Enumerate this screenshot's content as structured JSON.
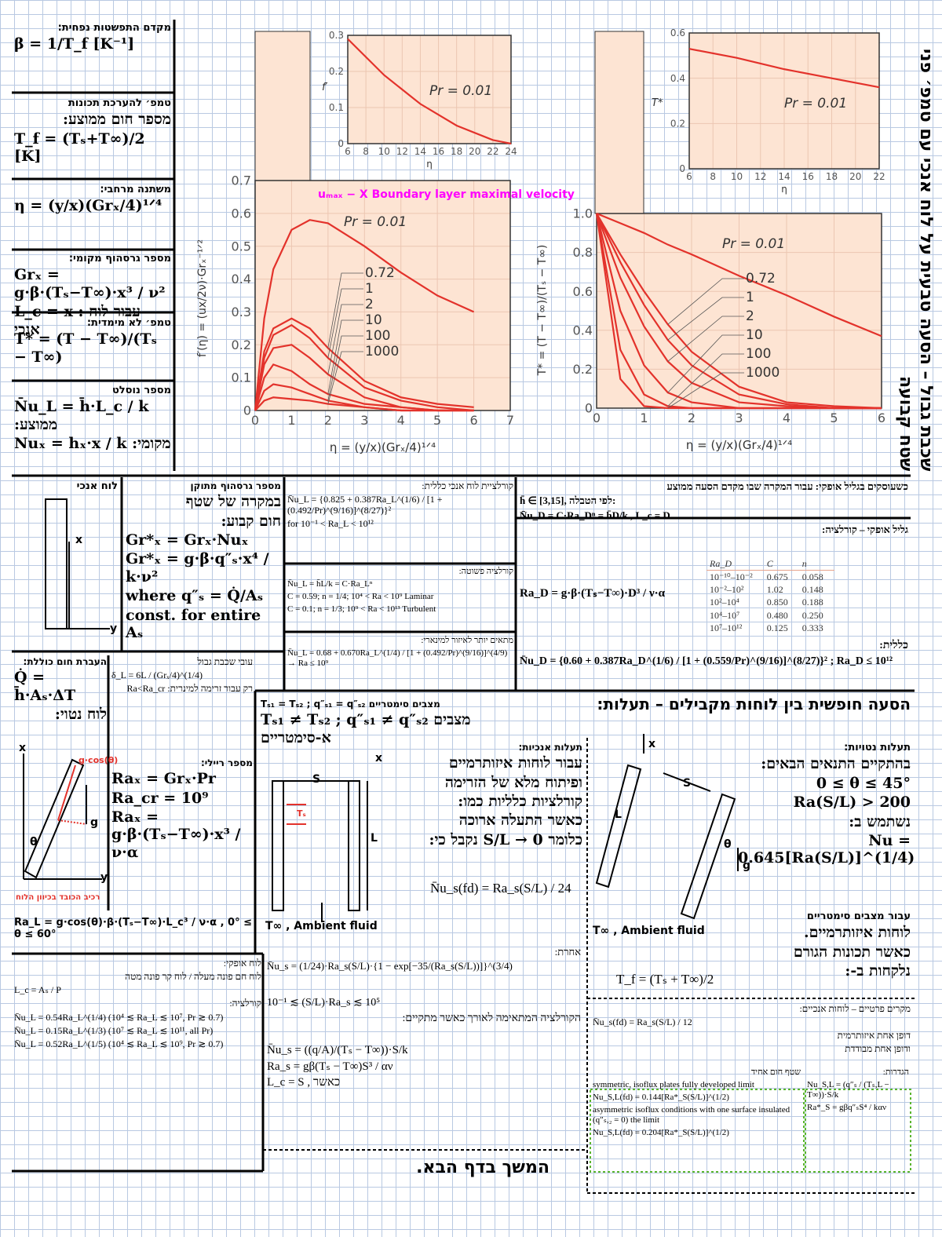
{
  "chart_data": [
    {
      "type": "line",
      "xlabel": "η = (y/x)(Grₓ/4)¹ᐟ⁴",
      "ylabel": "f′(η) = (ux/2ν)·Grₓ⁻¹ᐟ²",
      "xlim": [
        0,
        7
      ],
      "ylim": [
        0,
        0.7
      ],
      "xticks": [
        0,
        1,
        2,
        3,
        4,
        5,
        6,
        7
      ],
      "yticks": [
        0,
        0.1,
        0.2,
        0.3,
        0.4,
        0.5,
        0.6,
        0.7
      ],
      "grid": true,
      "x": [
        0,
        0.25,
        0.5,
        1,
        1.5,
        2,
        3,
        4,
        5,
        6
      ],
      "series": [
        {
          "name": "Pr = 0.01",
          "color": "#e3322b",
          "values": [
            0,
            0.28,
            0.43,
            0.55,
            0.58,
            0.57,
            0.5,
            0.42,
            0.35,
            0.3
          ]
        },
        {
          "name": "0.72",
          "color": "#e3322b",
          "values": [
            0,
            0.18,
            0.25,
            0.28,
            0.25,
            0.19,
            0.09,
            0.04,
            0.02,
            0.01
          ]
        },
        {
          "name": "1",
          "color": "#e3322b",
          "values": [
            0,
            0.16,
            0.23,
            0.26,
            0.22,
            0.16,
            0.07,
            0.03,
            0.01,
            0
          ]
        },
        {
          "name": "2",
          "color": "#e3322b",
          "values": [
            0,
            0.14,
            0.19,
            0.2,
            0.16,
            0.11,
            0.04,
            0.01,
            0,
            0
          ]
        },
        {
          "name": "10",
          "color": "#e3322b",
          "values": [
            0,
            0.1,
            0.14,
            0.12,
            0.08,
            0.05,
            0.02,
            0.01,
            0,
            0
          ]
        },
        {
          "name": "100",
          "color": "#e3322b",
          "values": [
            0,
            0.06,
            0.08,
            0.07,
            0.05,
            0.03,
            0.01,
            0,
            0,
            0
          ]
        },
        {
          "name": "1000",
          "color": "#e3322b",
          "values": [
            0,
            0.03,
            0.04,
            0.035,
            0.03,
            0.02,
            0.01,
            0,
            0,
            0
          ]
        }
      ],
      "annotation": "uₘₐₓ − X  Boundary layer maximal velocity",
      "inset": {
        "type": "line",
        "xlabel": "η",
        "ylabel": "f′",
        "xlim": [
          6,
          24
        ],
        "ylim": [
          0,
          0.3
        ],
        "xticks": [
          6,
          8,
          10,
          12,
          14,
          16,
          18,
          20,
          22,
          24
        ],
        "yticks": [
          0,
          0.1,
          0.2,
          0.3
        ],
        "grid": true,
        "x": [
          6,
          10,
          14,
          18,
          22,
          24
        ],
        "series": [
          {
            "name": "Pr = 0.01",
            "color": "#e3322b",
            "values": [
              0.29,
              0.19,
              0.11,
              0.05,
              0.01,
              0
            ]
          }
        ]
      }
    },
    {
      "type": "line",
      "xlabel": "η = (y/x)(Grₓ/4)¹ᐟ⁴",
      "ylabel": "T* = (T − T∞)/(Tₛ − T∞)",
      "xlim": [
        0,
        6
      ],
      "ylim": [
        0,
        1
      ],
      "xticks": [
        0,
        1,
        2,
        3,
        4,
        5,
        6
      ],
      "yticks": [
        0,
        0.2,
        0.4,
        0.6,
        0.8,
        {
          "value": 1,
          "label": "1.0"
        }
      ],
      "grid": true,
      "x": [
        0,
        0.5,
        1,
        1.5,
        2,
        3,
        4,
        5,
        6
      ],
      "series": [
        {
          "name": "Pr = 0.01",
          "color": "#e3322b",
          "values": [
            1,
            0.95,
            0.9,
            0.84,
            0.79,
            0.68,
            0.58,
            0.47,
            0.37
          ]
        },
        {
          "name": "0.72",
          "color": "#e3322b",
          "values": [
            1,
            0.79,
            0.6,
            0.43,
            0.29,
            0.11,
            0.03,
            0.01,
            0
          ]
        },
        {
          "name": "1",
          "color": "#e3322b",
          "values": [
            1,
            0.75,
            0.53,
            0.35,
            0.22,
            0.07,
            0.02,
            0,
            0
          ]
        },
        {
          "name": "2",
          "color": "#e3322b",
          "values": [
            1,
            0.67,
            0.42,
            0.24,
            0.13,
            0.03,
            0.01,
            0,
            0
          ]
        },
        {
          "name": "10",
          "color": "#e3322b",
          "values": [
            1,
            0.5,
            0.22,
            0.08,
            0.03,
            0,
            0,
            0,
            0
          ]
        },
        {
          "name": "100",
          "color": "#e3322b",
          "values": [
            1,
            0.3,
            0.07,
            0.01,
            0,
            0,
            0,
            0,
            0
          ]
        },
        {
          "name": "1000",
          "color": "#e3322b",
          "values": [
            1,
            0.15,
            0.01,
            0,
            0,
            0,
            0,
            0,
            0
          ]
        }
      ],
      "inset": {
        "type": "line",
        "xlabel": "η",
        "ylabel": "T*",
        "xlim": [
          6,
          22
        ],
        "ylim": [
          0,
          0.6
        ],
        "xticks": [
          6,
          8,
          10,
          12,
          14,
          16,
          18,
          20,
          22
        ],
        "yticks": [
          0,
          0.2,
          0.4,
          0.6
        ],
        "grid": true,
        "x": [
          6,
          10,
          14,
          18,
          22
        ],
        "series": [
          {
            "name": "Pr = 0.01",
            "color": "#e3322b",
            "values": [
              0.53,
              0.49,
              0.44,
              0.4,
              0.36
            ]
          }
        ]
      }
    }
  ],
  "sheet": {
    "beta": [
      "מקדם התפשטות נפחית:",
      "β = 1/T_f [K⁻¹]"
    ],
    "tf": [
      "טמפ׳ להערכת תכונות",
      "מספר חום ממוצע:",
      "T_f = (Tₛ+T∞)/2 [K]"
    ],
    "eta": [
      "משתנה מרחבי:",
      "η = (y/x)(Grₓ/4)¹ᐟ⁴"
    ],
    "grx": [
      "מספר גרסהוף מקומי:",
      "Grₓ = g·β·(Tₛ−T∞)·x³ / ν²",
      "L_c = x : עבור לוח אנכי"
    ],
    "tstar": [
      "טמפ׳ לא מימדית:",
      "T* = (T − T∞)/(Tₛ − T∞)"
    ],
    "nu": [
      "מספר נוסלט",
      "N̄u_L = h̄·L_c / k :ממוצע",
      "Nuₓ = hₓ·x / k :מקומי"
    ],
    "side": [
      "שכבת גבול – הסעה טבעית על לוח אנכי עם טמפ׳ פני שטח קבועה"
    ],
    "plate": [
      "לוח אנכי"
    ],
    "grmod": [
      "מספר גרסהוף מתוקן",
      "במקרה של שטף",
      "חום קבוע:",
      "Gr*ₓ = Grₓ·Nuₓ",
      "Gr*ₓ = g·β·q″ₛ·x⁴ / k·ν²",
      "where q″ₛ = Q̇/Aₛ",
      "const. for entire Aₛ"
    ],
    "corr": [
      "קורלציית לוח אנכי כללית:",
      "N̄u_L = {0.825 + 0.387Ra_L^(1/6) / [1 + (0.492/Pr)^(9/16)]^(8/27)}²",
      "for 10⁻¹ < Ra_L < 10¹²"
    ],
    "simple": [
      "קורלציה פשוטה:",
      "N̄u_L = h̄L/k = C·Ra_Lⁿ",
      "C = 0.59;  n = 1/4;  10⁴ < Ra < 10⁹  Laminar",
      "C = 0.1;  n = 1/3;  10⁹ < Ra < 10¹³  Turbulent"
    ],
    "lam": [
      "מתאים יותר לאיזור למינארי:",
      "N̄u_L = 0.68 + 0.670Ra_L^(1/4) / [1 + (0.492/Pr)^(9/16)]^(4/9) → Ra ≤ 10⁹"
    ],
    "cyl": [
      "כשעוסקים בגליל אופקי: עבור המקרה שבו מקדם הסעה ממוצע",
      "h̄ ∈ [3,15], לפי הטבלה:",
      "N̄u_D = C·Ra_Dⁿ = h̄D/k ,  L_c = D",
      "גליל אופקי – קורלציה:"
    ],
    "cyl_table": {
      "header": [
        "Ra_D",
        "C",
        "n"
      ],
      "rows": [
        [
          "10⁻¹⁰–10⁻²",
          "0.675",
          "0.058"
        ],
        [
          "10⁻²–10²",
          "1.02",
          "0.148"
        ],
        [
          "10²–10⁴",
          "0.850",
          "0.188"
        ],
        [
          "10⁴–10⁷",
          "0.480",
          "0.250"
        ],
        [
          "10⁷–10¹²",
          "0.125",
          "0.333"
        ]
      ]
    },
    "rad": [
      "Ra_D = g·β·(Tₛ−T∞)·D³ / ν·α"
    ],
    "cylgen": [
      "כללית:",
      "N̄u_D = {0.60 + 0.387Ra_D^(1/6) / [1 + (0.559/Pr)^(9/16)]^(8/27)}² ;  Ra_D ≤ 10¹²"
    ],
    "q": [
      "העברת חום כוללת:",
      "Q̇ = h̄·Aₛ·ΔT",
      "לוח נטוי:"
    ],
    "delta": [
      "עובי שכבת גבול",
      "δ_L = 6L / (Grₓ/4)^(1/4)",
      "רק עבור זרימה למינרית: Ra<Ra_cr"
    ],
    "ray": [
      "מספר ריילי:",
      "Raₓ = Grₓ·Pr",
      "Ra_cr = 10⁹",
      "Raₓ = g·β·(Tₛ−T∞)·x³ / ν·α"
    ],
    "ral": [
      "Ra_L = g·cos(θ)·β·(Tₛ−T∞)·L_c³ / ν·α ,  0° ≤ θ ≤ 60°"
    ],
    "horiz": [
      "לוח אופקי:",
      "לוח חם פונה מעלה / לוח קר פונה מטה",
      "L_c = Aₛ / P",
      "קורלציה:",
      "N̄u_L = 0.54Ra_L^(1/4)   (10⁴ ≲ Ra_L ≲ 10⁷, Pr ≳ 0.7)",
      "N̄u_L = 0.15Ra_L^(1/3)   (10⁷ ≲ Ra_L ≲ 10¹¹, all Pr)",
      "N̄u_L = 0.52Ra_L^(1/5)   (10⁴ ≲ Ra_L ≲ 10⁹, Pr ≳ 0.7)"
    ],
    "chtitle": [
      "הסעה חופשית בין לוחות מקבילים – תעלות:"
    ],
    "sym": [
      "Tₛ₁ = Tₛ₂ ; q″ₛ₁ = q″ₛ₂   מצבים סימטריים",
      "Tₛ₁ ≠ Tₛ₂ ; q″ₛ₁ ≠ q″ₛ₂   מצבים א-סימטריים"
    ],
    "vert": [
      "תעלות אנכיות:",
      "עבור לוחות איזותרמיים",
      "ופיתוח מלא של הזרימה",
      "קורלציות כלליות כמו:",
      "כאשר התעלה ארוכה",
      "כלומר S/L → 0 נקבל כי:"
    ],
    "nufd": [
      "N̄u_s(fd) = Ra_s(S/L) / 24"
    ],
    "other": [
      "אחרת:",
      "N̄u_s = (1/24)·Ra_s(S/L)·{1 − exp[−35/(Ra_s(S/L))]}^(3/4)"
    ],
    "range": [
      "10⁻¹ ≲ (S/L)·Ra_s ≲ 10⁵",
      "הקורלציה המתאימה לאורך כאשר מתקיים:"
    ],
    "nus": [
      "N̄u_s = ((q/A)/(Tₛ − T∞))·S/k",
      "Ra_s = gβ(Tₛ − T∞)S³ / αν",
      "L_c = S  ,  כאשר"
    ],
    "next": [
      "המשך בדף הבא."
    ],
    "tilt": [
      "תעלות נטויות:",
      "בהתקיים התנאים הבאים:",
      "0 ≤ θ ≤ 45°",
      "Ra(S/L) > 200",
      "נשתמש ב:",
      "Nu = 0.645[Ra(S/L)]^(1/4)"
    ],
    "tiltnote": [
      "עבור מצבים סימטריים",
      "לוחות איזותרמיים.",
      "כאשר תכונות הגורם",
      "נלקחות ב-:"
    ],
    "tfch": [
      "T_f = (Tₛ + T∞)/2"
    ],
    "special": [
      "מקרים פרטיים – לוחות אנכיים:",
      "N̄u_s(fd) = Ra_s(S/L) / 12",
      "דופן אחת איזותרמית",
      "ודופן אחת מבודדת"
    ],
    "flux": [
      "שטף חום אחיד",
      "symmetric, isoflux plates fully developed limit",
      "Nu_S,L(fd) = 0.144[Ra*_S(S/L)]^(1/2)",
      "asymmetric isoflux conditions with one surface insulated (q″ₛ,₂ = 0) the limit",
      "Nu_S,L(fd) = 0.204[Ra*_S(S/L)]^(1/2)"
    ],
    "fluxdef": [
      "הגדרות:",
      "Nu_S,L = (q″ₛ / (Tₛ,L − T∞))·S/k",
      "Ra*_S = gβq″ₛS⁴ / kαν"
    ],
    "labels": {
      "plate_x": "x",
      "plate_y": "y",
      "tilt_gcos": "g·cos(θ)",
      "tilt_theta": "θ",
      "tilt_g": "g",
      "tilt_x": "x",
      "tilt_y": "y",
      "tilt_note": "רכיב הכובד בכיוון הלוח",
      "ch_S": "S",
      "ch_L": "L",
      "ch_x": "x",
      "ch_Ts": "Tₛ",
      "ch_amb": "T∞ , Ambient fluid",
      "tc_S": "S",
      "tc_L": "L",
      "tc_x": "x",
      "tc_theta": "θ",
      "tc_g": "g",
      "tc_amb": "T∞ , Ambient fluid"
    }
  }
}
